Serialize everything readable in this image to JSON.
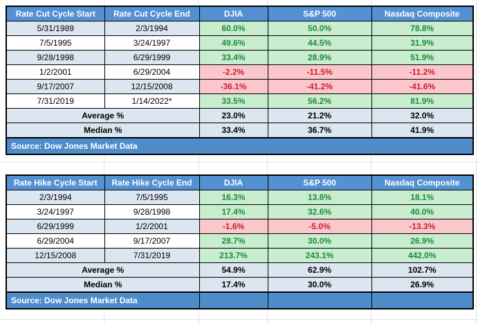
{
  "colors": {
    "header_bg": "#5391d2",
    "band_bg": "#dce6f1",
    "positive_bg": "#c8edcf",
    "positive_text": "#1f8a3c",
    "negative_bg": "#fbc7cd",
    "negative_text": "#c8202e",
    "source_bg": "#4e8cca"
  },
  "tables": [
    {
      "headers": [
        "Rate Cut Cycle Start",
        "Rate Cut Cycle End",
        "DJIA",
        "S&P 500",
        "Nasdaq Composite"
      ],
      "rows": [
        {
          "start": "5/31/1989",
          "end": "2/3/1994",
          "values": [
            "60.0%",
            "50.0%",
            "78.8%"
          ]
        },
        {
          "start": "7/5/1995",
          "end": "3/24/1997",
          "values": [
            "49.6%",
            "44.5%",
            "31.9%"
          ]
        },
        {
          "start": "9/28/1998",
          "end": "6/29/1999",
          "values": [
            "33.4%",
            "28.9%",
            "51.9%"
          ]
        },
        {
          "start": "1/2/2001",
          "end": "6/29/2004",
          "values": [
            "-2.2%",
            "-11.5%",
            "-11.2%"
          ]
        },
        {
          "start": "9/17/2007",
          "end": "12/15/2008",
          "values": [
            "-36.1%",
            "-41.2%",
            "-41.6%"
          ]
        },
        {
          "start": "7/31/2019",
          "end": "1/14/2022*",
          "values": [
            "33.5%",
            "56.2%",
            "81.9%"
          ]
        }
      ],
      "summary_rows": [
        {
          "label": "Average %",
          "values": [
            "23.0%",
            "21.2%",
            "32.0%"
          ]
        },
        {
          "label": "Median %",
          "values": [
            "33.4%",
            "36.7%",
            "41.9%"
          ]
        }
      ],
      "source": "Source: Dow Jones Market Data"
    },
    {
      "headers": [
        "Rate Hike Cycle Start",
        "Rate Hike Cycle End",
        "DJIA",
        "S&P 500",
        "Nasdaq Composite"
      ],
      "rows": [
        {
          "start": "2/3/1994",
          "end": "7/5/1995",
          "values": [
            "16.3%",
            "13.8%",
            "18.1%"
          ]
        },
        {
          "start": "3/24/1997",
          "end": "9/28/1998",
          "values": [
            "17.4%",
            "32.6%",
            "40.0%"
          ]
        },
        {
          "start": "6/29/1999",
          "end": "1/2/2001",
          "values": [
            "-1.6%",
            "-5.0%",
            "-13.3%"
          ]
        },
        {
          "start": "6/29/2004",
          "end": "9/17/2007",
          "values": [
            "28.7%",
            "30.0%",
            "26.9%"
          ]
        },
        {
          "start": "12/15/2008",
          "end": "7/31/2019",
          "values": [
            "213.7%",
            "243.1%",
            "442.0%"
          ]
        }
      ],
      "summary_rows": [
        {
          "label": "Average %",
          "values": [
            "54.9%",
            "62.9%",
            "102.7%"
          ]
        },
        {
          "label": "Median %",
          "values": [
            "17.4%",
            "30.0%",
            "26.9%"
          ]
        }
      ],
      "source": "Source: Dow Jones Market Data"
    }
  ]
}
